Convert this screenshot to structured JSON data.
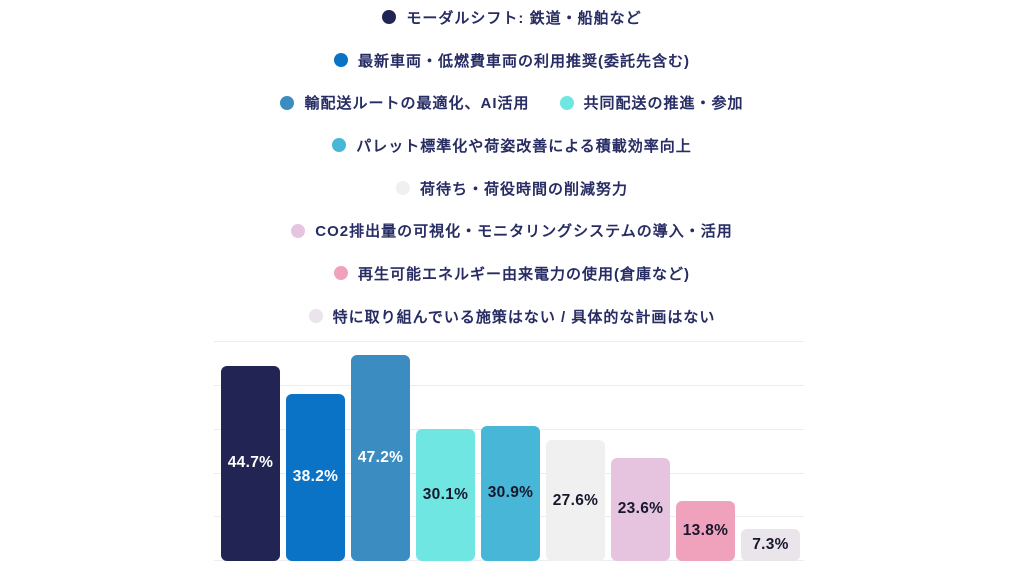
{
  "colors": {
    "background": "#ffffff",
    "legend_text": "#272c63",
    "gridline": "#ededf1",
    "label_light": "#ffffff",
    "label_dark": "#17172e"
  },
  "chart_data": {
    "type": "bar",
    "title": "",
    "xlabel": "",
    "ylabel": "",
    "unit": "%",
    "ylim": [
      0,
      51
    ],
    "grid": true,
    "gridline_values": [
      0,
      10,
      20,
      30,
      40,
      50
    ],
    "legend_position": "top",
    "categories": [
      "モーダルシフト: 鉄道・船舶など",
      "最新車両・低燃費車両の利用推奨(委託先含む)",
      "輸配送ルートの最適化、AI活用",
      "共同配送の推進・参加",
      "パレット標準化や荷姿改善による積載効率向上",
      "荷待ち・荷役時間の削減努力",
      "CO2排出量の可視化・モニタリングシステムの導入・活用",
      "再生可能エネルギー由来電力の使用(倉庫など)",
      "特に取り組んでいる施策はない / 具体的な計画はない"
    ],
    "values": [
      44.7,
      38.2,
      47.2,
      30.1,
      30.9,
      27.6,
      23.6,
      13.8,
      7.3
    ],
    "labels": [
      "44.7%",
      "38.2%",
      "47.2%",
      "30.1%",
      "30.9%",
      "27.6%",
      "23.6%",
      "13.8%",
      "7.3%"
    ],
    "bar_colors": [
      "#222453",
      "#0b73c6",
      "#3b8dc1",
      "#70e6e3",
      "#48b7d7",
      "#f0f0f1",
      "#e6c4e0",
      "#f0a2bd",
      "#e9e5eb"
    ],
    "label_colors": [
      "#ffffff",
      "#ffffff",
      "#ffffff",
      "#17172e",
      "#17172e",
      "#17172e",
      "#17172e",
      "#17172e",
      "#17172e"
    ]
  },
  "legend": {
    "rows": [
      {
        "items": [
          {
            "label": "モーダルシフト: 鉄道・船舶など",
            "color": "#222453"
          }
        ]
      },
      {
        "items": [
          {
            "label": "最新車両・低燃費車両の利用推奨(委託先含む)",
            "color": "#0b73c6"
          }
        ]
      },
      {
        "items": [
          {
            "label": "輸配送ルートの最適化、AI活用",
            "color": "#3b8dc1"
          },
          {
            "label": "共同配送の推進・参加",
            "color": "#70e6e3"
          }
        ]
      },
      {
        "items": [
          {
            "label": "パレット標準化や荷姿改善による積載効率向上",
            "color": "#48b7d7"
          }
        ]
      },
      {
        "items": [
          {
            "label": "荷待ち・荷役時間の削減努力",
            "color": "#f0f0f1"
          }
        ]
      },
      {
        "items": [
          {
            "label": "CO2排出量の可視化・モニタリングシステムの導入・活用",
            "color": "#e6c4e0"
          }
        ]
      },
      {
        "items": [
          {
            "label": "再生可能エネルギー由来電力の使用(倉庫など)",
            "color": "#f0a2bd"
          }
        ]
      },
      {
        "items": [
          {
            "label": "特に取り組んでいる施策はない / 具体的な計画はない",
            "color": "#e9e5eb"
          }
        ]
      }
    ]
  }
}
